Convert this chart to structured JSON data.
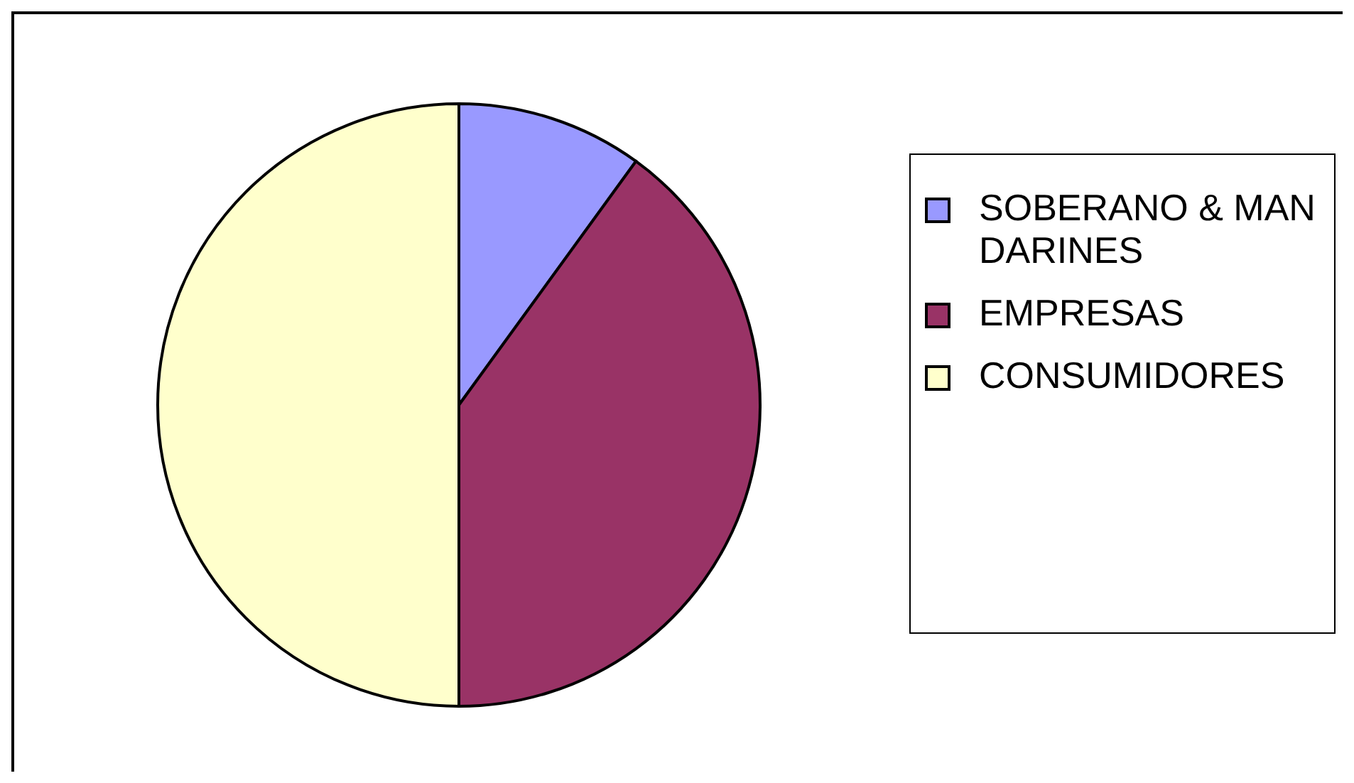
{
  "chart_data": {
    "type": "pie",
    "categories": [
      "SOBERANO & MANDARINES",
      "EMPRESAS",
      "CONSUMIDORES"
    ],
    "values": [
      10,
      40,
      50
    ],
    "colors": [
      "#9999ff",
      "#993366",
      "#ffffcc"
    ],
    "legend": "right"
  }
}
